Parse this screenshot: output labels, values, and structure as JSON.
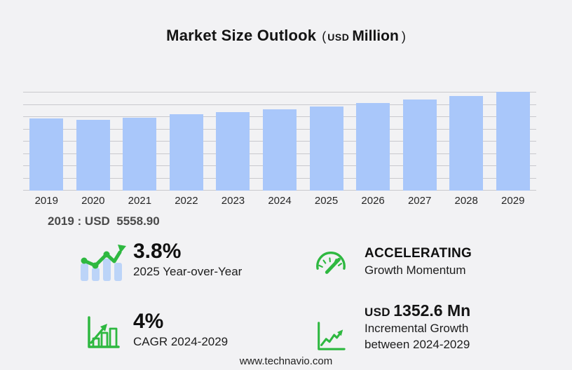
{
  "title": {
    "main": "Market Size Outlook",
    "paren_open": "(",
    "currency": "USD",
    "unit": "Million",
    "paren_close": ")"
  },
  "chart_data": {
    "type": "bar",
    "title": "Market Size Outlook (USD Million)",
    "categories": [
      "2019",
      "2020",
      "2021",
      "2022",
      "2023",
      "2024",
      "2025",
      "2026",
      "2027",
      "2028",
      "2029"
    ],
    "values": [
      5558.9,
      5455,
      5630,
      5865,
      6030,
      6270,
      6510,
      6760,
      7030,
      7310,
      7623
    ],
    "xlabel": "",
    "ylabel": "",
    "unit": "USD Million",
    "ylim": [
      0,
      8000
    ],
    "grid": true,
    "gridline_count": 9,
    "legend": false,
    "bar_color": "#a9c7fa"
  },
  "note": {
    "base_year_value": "2019 : USD  5558.90"
  },
  "stats": {
    "yoy": {
      "value": "3.8%",
      "label": "2025 Year-over-Year",
      "icon": "bar-chart-trend-icon"
    },
    "momentum": {
      "value": "ACCELERATING",
      "label": "Growth Momentum",
      "icon": "speedometer-icon"
    },
    "cagr": {
      "value": "4%",
      "label": "CAGR 2024-2029",
      "icon": "growth-bars-icon"
    },
    "incremental": {
      "value_prefix": "USD",
      "value": "1352.6 Mn",
      "label": "Incremental Growth",
      "label2": "between 2024-2029",
      "icon": "line-growth-icon"
    }
  },
  "footer": {
    "website": "www.technavio.com"
  },
  "colors": {
    "background": "#f2f2f4",
    "bar": "#a9c7fa",
    "grid": "#c9c9cd",
    "green": "#2eb840",
    "icon_bar_blue": "#bcd4f8",
    "note_gray": "#4a4a4a"
  }
}
